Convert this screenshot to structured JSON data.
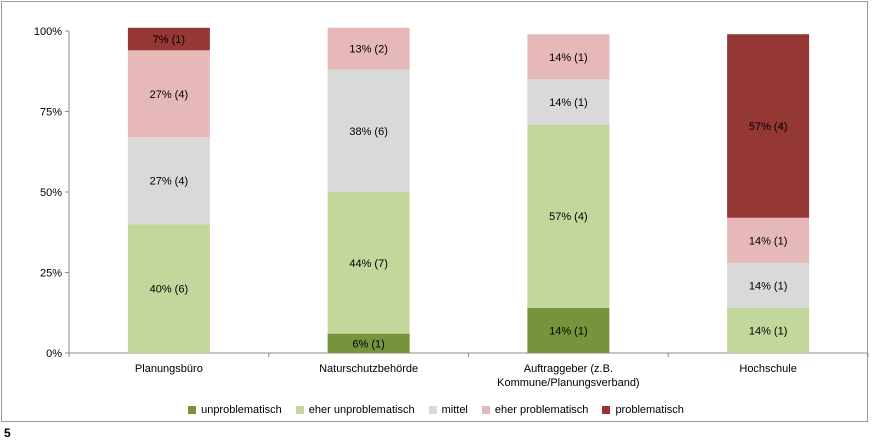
{
  "page_number": "5",
  "chart_data": {
    "type": "bar",
    "stacked": true,
    "normalized": true,
    "categories": [
      "Planungsbüro",
      "Naturschutzbehörde",
      "Auftraggeber (z.B.\nKommune/Planungsverband)",
      "Hochschule"
    ],
    "y_ticks": [
      "0%",
      "25%",
      "50%",
      "75%",
      "100%"
    ],
    "ylim": [
      0,
      100
    ],
    "grid": false,
    "legend_position": "bottom",
    "series": [
      {
        "name": "unproblematisch",
        "color": "#77933c",
        "values": [
          0,
          6,
          14,
          0
        ],
        "labels": [
          "",
          "6% (1)",
          "14% (1)",
          ""
        ]
      },
      {
        "name": "eher unproblematisch",
        "color": "#c3d69b",
        "values": [
          40,
          44,
          57,
          14
        ],
        "labels": [
          "40% (6)",
          "44% (7)",
          "57% (4)",
          "14% (1)"
        ]
      },
      {
        "name": "mittel",
        "color": "#d9d9d9",
        "values": [
          27,
          38,
          14,
          14
        ],
        "labels": [
          "27% (4)",
          "38% (6)",
          "14% (1)",
          "14% (1)"
        ]
      },
      {
        "name": "eher problematisch",
        "color": "#e6b9b8",
        "values": [
          27,
          13,
          14,
          14
        ],
        "labels": [
          "27% (4)",
          "13% (2)",
          "14% (1)",
          "14% (1)"
        ]
      },
      {
        "name": "problematisch",
        "color": "#953735",
        "values": [
          7,
          0,
          0,
          57
        ],
        "labels": [
          "7% (1)",
          "",
          "",
          "57% (4)"
        ]
      }
    ]
  }
}
